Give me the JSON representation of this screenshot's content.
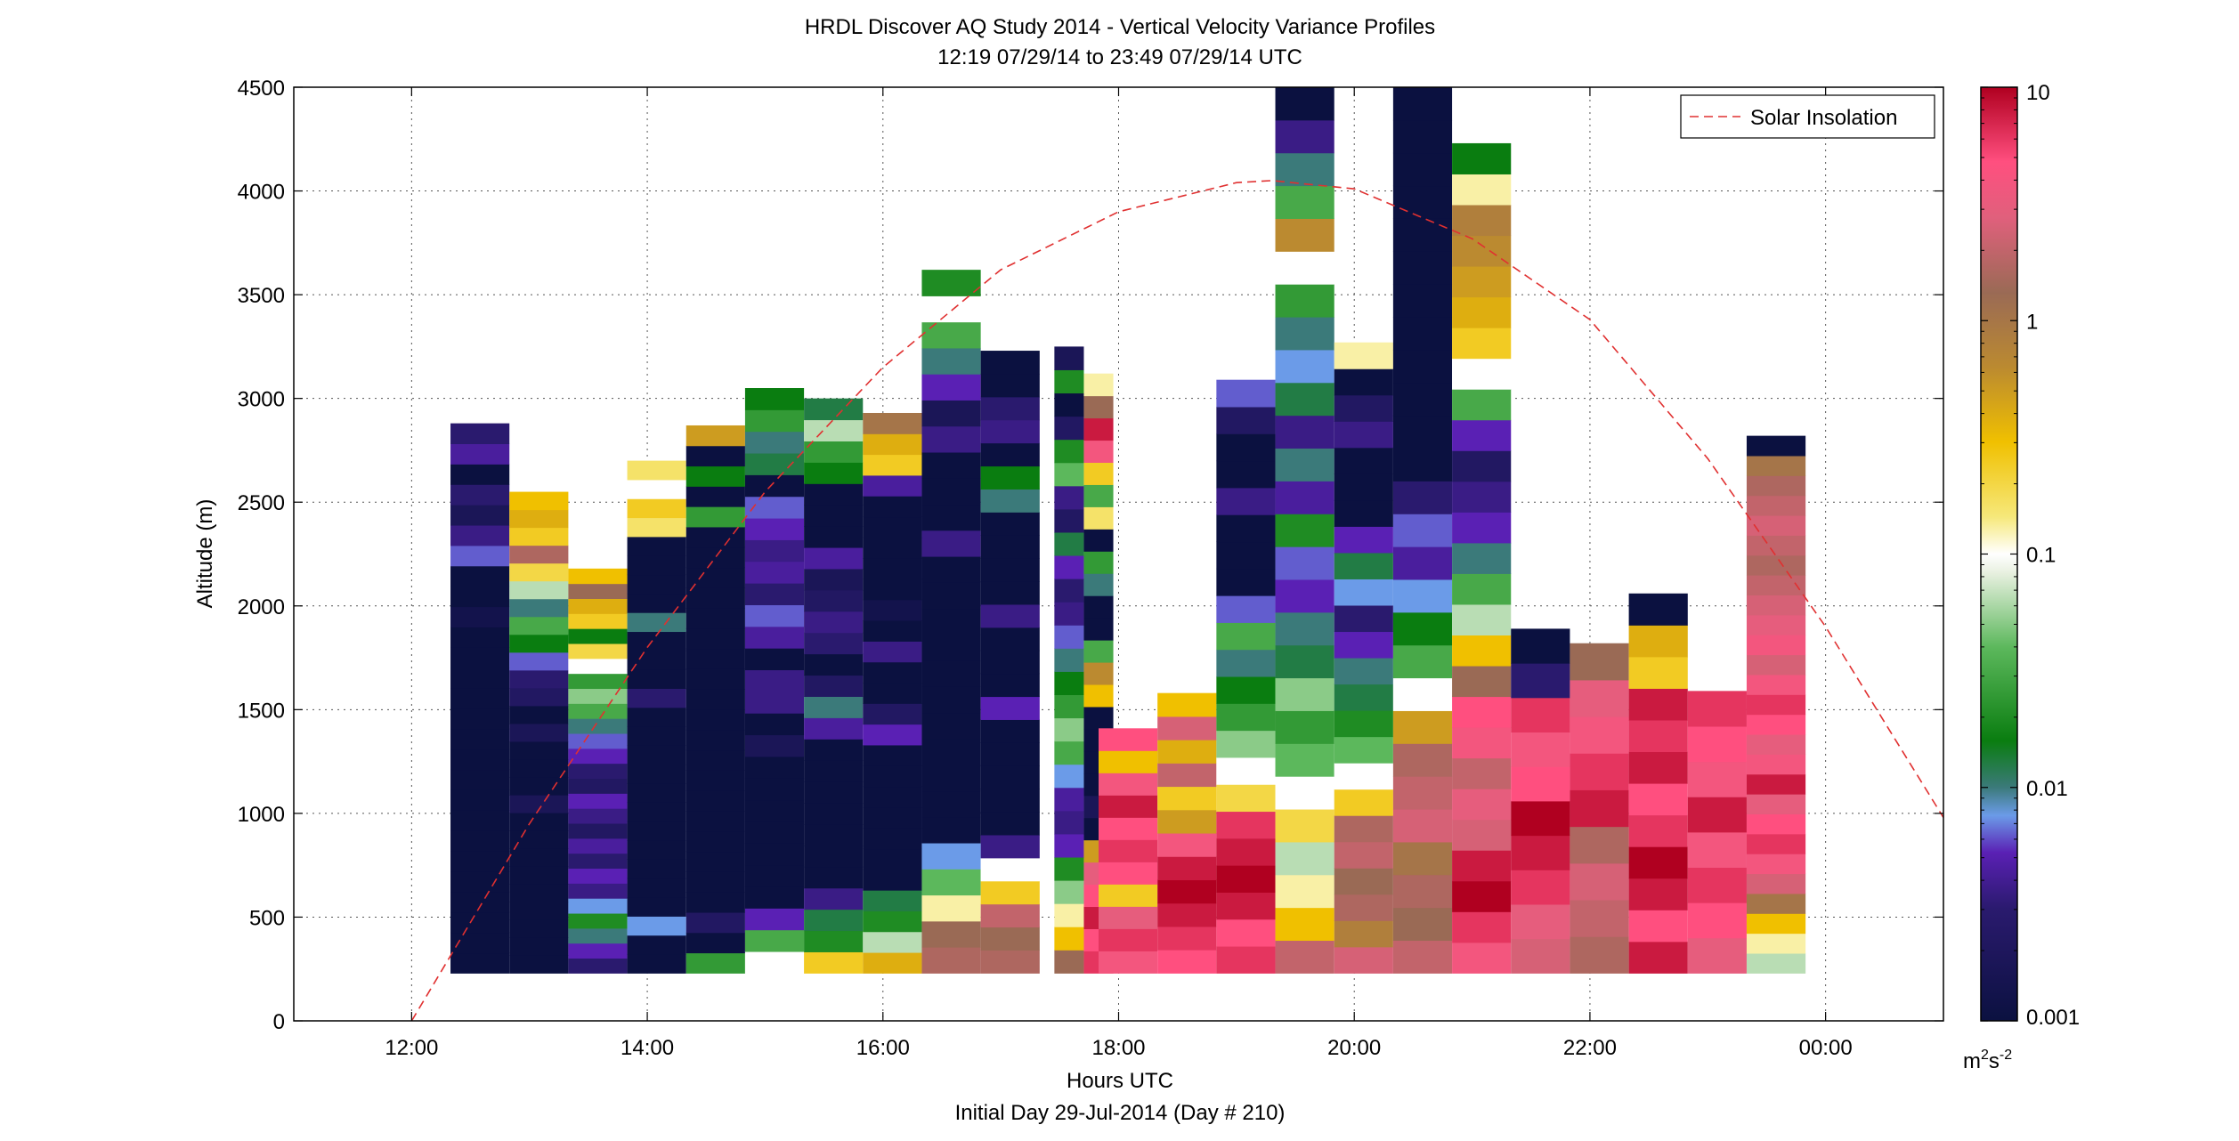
{
  "figure": {
    "title_line1": "HRDL Discover AQ Study 2014 - Vertical Velocity Variance Profiles",
    "title_line2": "12:19 07/29/14 to 23:49 07/29/14  UTC",
    "xlabel": "Hours UTC",
    "xlabel2": "Initial Day 29-Jul-2014 (Day # 210)",
    "ylabel": "Altitude (m)",
    "legend_label": "Solar Insolation",
    "colorbar_unit_base": "m",
    "colorbar_unit_sup1": "2",
    "colorbar_unit_mid": "s",
    "colorbar_unit_sup2": "-2"
  },
  "chart_data": {
    "type": "heatmap",
    "x_axis": {
      "range_hours": [
        11.0,
        25.0
      ],
      "ticks": [
        12,
        14,
        16,
        18,
        20,
        22,
        24
      ],
      "tick_labels": [
        "12:00",
        "14:00",
        "16:00",
        "18:00",
        "20:00",
        "22:00",
        "00:00"
      ]
    },
    "y_axis": {
      "range_m": [
        0,
        4500
      ],
      "ticks": [
        0,
        500,
        1000,
        1500,
        2000,
        2500,
        3000,
        3500,
        4000,
        4500
      ],
      "tick_labels": [
        "0",
        "500",
        "1000",
        "1500",
        "2000",
        "2500",
        "3000",
        "3500",
        "4000",
        "4500"
      ]
    },
    "grid": true,
    "legend_position": "top-right",
    "colorbar": {
      "scale": "log",
      "min": 0.001,
      "max": 10,
      "tick_labels": [
        "0.001",
        "0.01",
        "0.1",
        "1",
        "10"
      ],
      "colors": {
        "very_low": "#0b1140",
        "low": "#5a20b4",
        "low_mid": "#6b9be8",
        "mid": "#178a2a",
        "mid_high": "#e8f0e0",
        "high": "#f0c000",
        "higher": "#bb8a30",
        "very_high": "#ff4f7f",
        "max": "#b00020"
      }
    },
    "series": [
      {
        "name": "Solar Insolation",
        "style": "dashed",
        "color": "#e03030",
        "x": [
          12.0,
          13.0,
          14.0,
          15.0,
          16.0,
          17.0,
          18.0,
          19.0,
          19.3,
          20.0,
          21.0,
          22.0,
          23.0,
          24.0,
          25.0
        ],
        "y": [
          0,
          950,
          1800,
          2550,
          3150,
          3620,
          3900,
          4040,
          4050,
          4010,
          3770,
          3380,
          2710,
          1900,
          980
        ]
      }
    ],
    "profiles": [
      {
        "hour": 12.58,
        "top_m": 2880,
        "log10_values": [
          -3,
          -3,
          -3,
          -3,
          -3,
          -3,
          -3,
          -3,
          -3,
          -3,
          -3,
          -3,
          -3,
          -3,
          -3,
          -3,
          -3,
          -2.9,
          -3,
          -3,
          -2.2,
          -2.5,
          -2.8,
          -2.6,
          -3,
          -2.4,
          -2.6
        ]
      },
      {
        "hour": 13.08,
        "top_m": 2550,
        "log10_values": [
          -3,
          -3,
          -3,
          -3,
          -3,
          -3,
          -3,
          -3,
          -3,
          -2.8,
          -3,
          -3,
          -3,
          -2.8,
          -3,
          -2.7,
          -2.6,
          -2.2,
          -1.8,
          -1.5,
          -2.0,
          -1.2,
          -0.7,
          0.2,
          -0.6,
          -0.4,
          -0.5
        ]
      },
      {
        "hour": 13.58,
        "top_m": 2180,
        "log10_values": [
          -2.6,
          -2.3,
          -2.0,
          -1.7,
          -2.1,
          -2.5,
          -2.3,
          -2.6,
          -2.4,
          -2.7,
          -2.5,
          -2.3,
          -2.7,
          -2.6,
          -2.3,
          -2.2,
          -2.0,
          -1.5,
          -1.3,
          -1.6,
          -1.0,
          -0.7,
          -1.8,
          -0.6,
          -0.4,
          0.1,
          -0.5
        ]
      },
      {
        "hour": 14.08,
        "top_m": 2700,
        "log10_values": [
          -3,
          -3,
          -2.1,
          -3,
          -3,
          -3,
          -3,
          -3,
          -3,
          -3,
          -3,
          -3,
          -3,
          -3,
          -2.6,
          -3,
          -3,
          -3,
          -2.0,
          -3,
          -3,
          -3,
          -3,
          -0.8,
          -0.6,
          -1.0,
          -0.8
        ]
      },
      {
        "hour": 14.58,
        "top_m": 2870,
        "log10_values": [
          -1.6,
          -3,
          -2.7,
          -3,
          -3,
          -3,
          -3,
          -3,
          -3,
          -3,
          -3,
          -3,
          -3,
          -3,
          -3,
          -3,
          -3,
          -3,
          -3,
          -3,
          -3,
          -3,
          -1.6,
          -3,
          -1.8,
          -3,
          -0.3
        ]
      },
      {
        "hour": 15.08,
        "top_m": 3050,
        "log10_values": [
          -1.0,
          -1.5,
          -2.3,
          -3,
          -3,
          -3,
          -3,
          -3,
          -3,
          -3,
          -2.8,
          -3,
          -2.5,
          -2.5,
          -3,
          -2.4,
          -2.2,
          -2.6,
          -2.4,
          -2.5,
          -2.3,
          -2.2,
          -3,
          -1.9,
          -2.0,
          -1.6,
          -1.8
        ]
      },
      {
        "hour": 15.58,
        "top_m": 3000,
        "log10_values": [
          -0.6,
          -1.7,
          -1.9,
          -2.5,
          -3,
          -3,
          -3,
          -3,
          -3,
          -3,
          -3,
          -2.4,
          -2.0,
          -2.7,
          -3,
          -2.6,
          -2.5,
          -2.7,
          -2.8,
          -2.4,
          -3,
          -3,
          -3,
          -1.8,
          -1.6,
          -1.2,
          -1.9
        ]
      },
      {
        "hour": 16.08,
        "top_m": 2930,
        "log10_values": [
          -0.4,
          -1.2,
          -1.7,
          -1.9,
          -3,
          -3,
          -3,
          -3,
          -3,
          -3,
          -3,
          -2.3,
          -2.7,
          -3,
          -3,
          -2.5,
          -3,
          -2.9,
          -3,
          -3,
          -3,
          -3,
          -3,
          -2.4,
          -0.6,
          -0.4,
          0.0
        ]
      },
      {
        "hour": 16.58,
        "top_m": 3620,
        "log10_values": [
          0.2,
          0.1,
          -0.9,
          -1.4,
          -2.1,
          -3,
          -3,
          -3,
          -3,
          -3,
          -3,
          -3,
          -3,
          -3,
          -3,
          -3,
          -2.5,
          -3,
          -3,
          -3,
          -2.5,
          -2.8,
          -2.3,
          -2.0,
          -1.5,
          -1.0,
          -1.7
        ]
      },
      {
        "hour": 17.08,
        "top_m": 3230,
        "log10_values": [
          0.2,
          0.1,
          0.3,
          -0.6,
          -1.0,
          -2.5,
          -3,
          -3,
          -3,
          -3,
          -3,
          -2.3,
          -3,
          -3,
          -3,
          -2.5,
          -3,
          -3,
          -3,
          -3,
          -2.0,
          -1.8,
          -3,
          -2.5,
          -2.6,
          -3,
          -3
        ]
      },
      {
        "hour": 17.58,
        "top_m": 3250,
        "log10_values": [
          0.1,
          -0.5,
          -0.9,
          -1.3,
          -1.7,
          -2.3,
          -2.5,
          -2.4,
          -2.1,
          -1.5,
          -1.3,
          -1.6,
          -1.8,
          -2.0,
          -2.2,
          -2.5,
          -2.6,
          -2.3,
          -1.9,
          -2.7,
          -2.5,
          -1.4,
          -1.7,
          -2.7,
          -3,
          -1.7,
          -2.8
        ]
      },
      {
        "hour": 17.83,
        "top_m": 3120,
        "log10_values": [
          0.8,
          0.7,
          0.9,
          0.7,
          0.5,
          -0.3,
          -3,
          -2.8,
          -3,
          -3,
          -3,
          -3,
          -0.5,
          -0.2,
          -1.5,
          -3,
          -3,
          -2.0,
          -1.6,
          -3,
          -0.8,
          -1.5,
          -0.6,
          0.6,
          0.9,
          0.1,
          -0.9
        ]
      },
      {
        "hour": 18.08,
        "top_m": 1410,
        "log10_values": [
          0.6,
          0.8,
          0.5,
          -0.6,
          0.7,
          0.8,
          0.7,
          0.9,
          0.6,
          -0.5,
          0.7
        ]
      },
      {
        "hour": 18.58,
        "top_m": 1580,
        "log10_values": [
          0.7,
          0.8,
          0.9,
          1.0,
          0.9,
          0.6,
          -0.3,
          -0.6,
          0.3,
          -0.4,
          0.4,
          -0.5
        ]
      },
      {
        "hour": 19.08,
        "top_m": 3090,
        "log10_values": [
          0.8,
          0.7,
          0.9,
          1.0,
          0.9,
          0.8,
          -0.7,
          -1.0,
          -1.3,
          -1.6,
          -1.8,
          -2.0,
          -1.5,
          -2.2,
          -3,
          -3,
          -3,
          -2.5,
          -3,
          -3,
          -2.7,
          -2.2
        ]
      },
      {
        "hour": 19.58,
        "top_m": 4500,
        "log10_values": [
          0.3,
          -0.5,
          -0.9,
          -1.2,
          -0.7,
          -1.0,
          -1.4,
          -1.6,
          -1.3,
          -1.9,
          -2.0,
          -2.3,
          -2.2,
          -1.7,
          -2.4,
          -2.0,
          -2.5,
          -1.9,
          -2.1,
          -2.0,
          -1.6,
          -1.0,
          -0.2,
          -1.5,
          -2.0,
          -2.5,
          -3
        ]
      },
      {
        "hour": 20.08,
        "top_m": 3270,
        "log10_values": [
          0.4,
          -0.1,
          0.2,
          0.1,
          0.3,
          0.2,
          -0.6,
          -1.0,
          -1.4,
          -1.7,
          -1.9,
          -2.0,
          -2.3,
          -2.6,
          -2.1,
          -1.9,
          -2.3,
          -3,
          -3,
          -3,
          -2.5,
          -2.7,
          -3,
          -0.9
        ]
      },
      {
        "hour": 20.58,
        "top_m": 4500,
        "log10_values": [
          0.3,
          0.1,
          0.2,
          0.0,
          0.4,
          0.3,
          0.2,
          -0.3,
          -1.0,
          -1.5,
          -1.8,
          -2.1,
          -2.4,
          -2.2,
          -2.6,
          -3,
          -3,
          -3,
          -3,
          -3,
          -3,
          -3,
          -3,
          -3,
          -3,
          -3,
          -3
        ]
      },
      {
        "hour": 21.08,
        "top_m": 4230,
        "log10_values": [
          0.6,
          0.8,
          1.0,
          0.9,
          0.4,
          0.5,
          0.3,
          0.6,
          0.7,
          0.1,
          -0.5,
          -1.2,
          -1.5,
          -2.0,
          -2.3,
          -2.5,
          -2.7,
          -2.3,
          -1.5,
          -1.0,
          -0.6,
          -0.4,
          -0.3,
          -0.2,
          -0.1,
          -0.9,
          -1.8
        ]
      },
      {
        "hour": 21.58,
        "top_m": 1890,
        "log10_values": [
          0.4,
          0.5,
          0.8,
          0.9,
          1.0,
          0.7,
          0.6,
          0.8,
          -2.6,
          -3
        ]
      },
      {
        "hour": 22.08,
        "top_m": 1820,
        "log10_values": [
          0.2,
          0.3,
          0.4,
          0.2,
          0.9,
          0.8,
          0.6,
          0.5,
          0.1
        ]
      },
      {
        "hour": 22.58,
        "top_m": 2060,
        "log10_values": [
          0.9,
          0.7,
          0.9,
          1.0,
          0.8,
          0.7,
          0.9,
          0.8,
          0.9,
          -0.6,
          -0.4,
          -3
        ]
      },
      {
        "hour": 23.08,
        "top_m": 1590,
        "log10_values": [
          0.5,
          0.7,
          0.8,
          0.6,
          0.9,
          0.6,
          0.7,
          0.8
        ]
      },
      {
        "hour": 23.58,
        "top_m": 2820,
        "log10_values": [
          -1.2,
          -0.9,
          -0.5,
          0.0,
          0.4,
          0.6,
          0.8,
          0.7,
          0.5,
          0.9,
          0.6,
          0.5,
          0.7,
          0.8,
          0.6,
          0.4,
          0.6,
          0.5,
          0.4,
          0.3,
          0.2,
          0.3,
          0.4,
          0.3,
          0.2,
          0.0,
          -3
        ]
      }
    ]
  }
}
